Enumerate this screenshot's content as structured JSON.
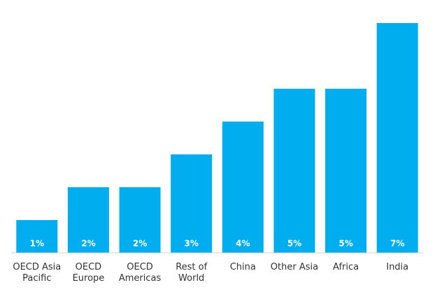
{
  "chart_data": {
    "type": "bar",
    "categories": [
      "OECD Asia Pacific",
      "OECD Europe",
      "OECD Americas",
      "Rest of World",
      "China",
      "Other Asia",
      "Africa",
      "India"
    ],
    "values": [
      1,
      2,
      2,
      3,
      4,
      5,
      5,
      7
    ],
    "value_labels": [
      "1%",
      "2%",
      "2%",
      "3%",
      "4%",
      "5%",
      "5%",
      "7%"
    ],
    "color": "#00aeef",
    "ylim": [
      0,
      7
    ]
  }
}
